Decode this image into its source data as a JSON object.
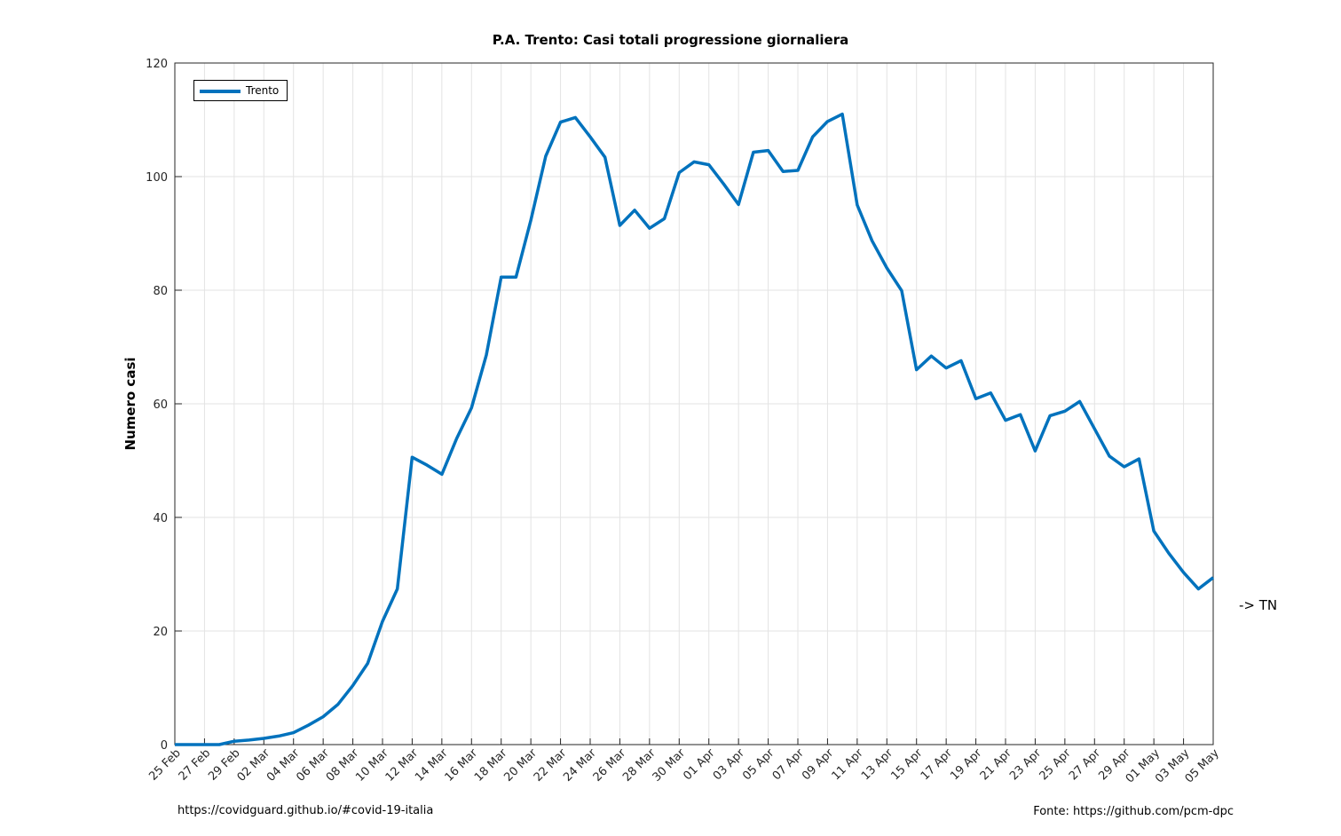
{
  "chart_data": {
    "type": "line",
    "title": "P.A. Trento: Casi totali progressione giornaliera",
    "xlabel": "",
    "ylabel": "Numero casi",
    "ylim": [
      0,
      120
    ],
    "yticks": [
      0,
      20,
      40,
      60,
      80,
      100,
      120
    ],
    "grid": true,
    "legend_position": "top-left",
    "tick_labels": [
      "25 Feb",
      "27 Feb",
      "29 Feb",
      "02 Mar",
      "04 Mar",
      "06 Mar",
      "08 Mar",
      "10 Mar",
      "12 Mar",
      "14 Mar",
      "16 Mar",
      "18 Mar",
      "20 Mar",
      "22 Mar",
      "24 Mar",
      "26 Mar",
      "28 Mar",
      "30 Mar",
      "01 Apr",
      "03 Apr",
      "05 Apr",
      "07 Apr",
      "09 Apr",
      "11 Apr",
      "13 Apr",
      "15 Apr",
      "17 Apr",
      "19 Apr",
      "21 Apr",
      "23 Apr",
      "25 Apr",
      "27 Apr",
      "29 Apr",
      "01 May",
      "03 May",
      "05 May"
    ],
    "x_start": "25 Feb",
    "x_end": "05 May",
    "series": [
      {
        "name": "Trento",
        "color": "#0072bd",
        "values": [
          0,
          0,
          0,
          0,
          0.6,
          0.8,
          1.1,
          1.5,
          2.1,
          3.4,
          4.9,
          7.1,
          10.4,
          14.3,
          21.7,
          27.4,
          50.6,
          49.2,
          47.6,
          53.9,
          59.3,
          68.6,
          82.3,
          82.3,
          92.3,
          103.6,
          109.6,
          110.4,
          107.0,
          103.4,
          91.4,
          94.1,
          90.9,
          92.6,
          100.7,
          102.6,
          102.1,
          98.7,
          95.1,
          104.3,
          104.6,
          100.9,
          101.1,
          107.0,
          109.7,
          111.0,
          95.0,
          88.7,
          83.9,
          79.9,
          66.0,
          68.4,
          66.3,
          67.6,
          60.9,
          61.9,
          57.1,
          58.1,
          51.7,
          57.9,
          58.7,
          60.4,
          55.6,
          50.8,
          48.9,
          50.3,
          37.6,
          33.7,
          30.3,
          27.4,
          29.4
        ]
      }
    ]
  },
  "annotation": "-> TN",
  "source_left": "https://covidguard.github.io/#covid-19-italia",
  "source_right": "Fonte: https://github.com/pcm-dpc"
}
